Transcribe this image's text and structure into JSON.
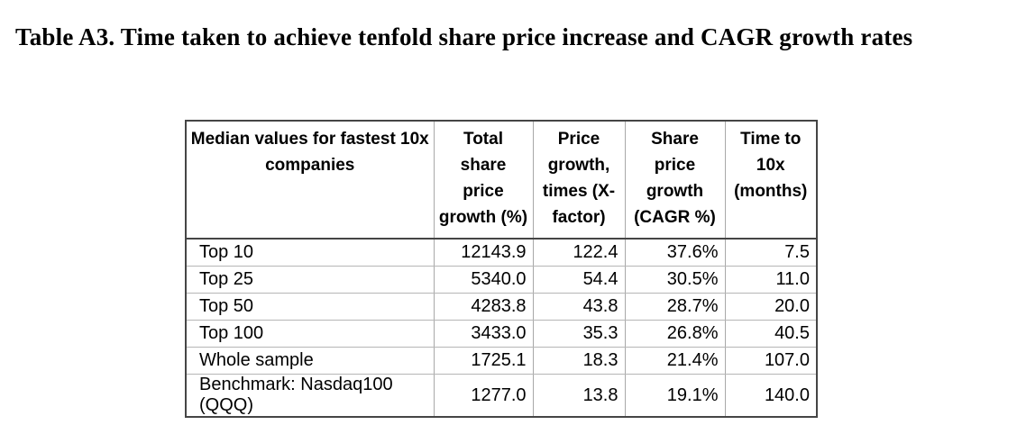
{
  "page": {
    "title": "Table A3. Time taken to achieve tenfold share price increase and CAGR growth rates"
  },
  "table": {
    "headers": [
      "Median values for fastest 10x\ncompanies",
      "Total\nshare\nprice\ngrowth (%)",
      "Price\ngrowth,\ntimes (X-\nfactor)",
      "Share\nprice\ngrowth\n(CAGR %)",
      "Time to\n10x\n(months)"
    ],
    "rows": [
      {
        "label": "Top 10",
        "values": [
          "12143.9",
          "122.4",
          "37.6%",
          "7.5"
        ]
      },
      {
        "label": "Top 25",
        "values": [
          "5340.0",
          "54.4",
          "30.5%",
          "11.0"
        ]
      },
      {
        "label": "Top 50",
        "values": [
          "4283.8",
          "43.8",
          "28.7%",
          "20.0"
        ]
      },
      {
        "label": "Top 100",
        "values": [
          "3433.0",
          "35.3",
          "26.8%",
          "40.5"
        ]
      },
      {
        "label": "Whole sample",
        "values": [
          "1725.1",
          "18.3",
          "21.4%",
          "107.0"
        ]
      },
      {
        "label": "Benchmark: Nasdaq100 (QQQ)",
        "values": [
          "1277.0",
          "13.8",
          "19.1%",
          "140.0"
        ]
      }
    ]
  },
  "colors": {
    "text": "#000000",
    "border_dark": "#454545",
    "border_light": "#a8a8a8"
  },
  "chart_data": {
    "type": "table",
    "title": "Table A3. Time taken to achieve tenfold share price increase and CAGR growth rates",
    "columns": [
      "Median values for fastest 10x companies",
      "Total share price growth (%)",
      "Price growth, times (X-factor)",
      "Share price growth (CAGR %)",
      "Time to 10x (months)"
    ],
    "rows": [
      [
        "Top 10",
        12143.9,
        122.4,
        "37.6%",
        7.5
      ],
      [
        "Top 25",
        5340.0,
        54.4,
        "30.5%",
        11.0
      ],
      [
        "Top 50",
        4283.8,
        43.8,
        "28.7%",
        20.0
      ],
      [
        "Top 100",
        3433.0,
        35.3,
        "26.8%",
        40.5
      ],
      [
        "Whole sample",
        1725.1,
        18.3,
        "21.4%",
        107.0
      ],
      [
        "Benchmark: Nasdaq100 (QQQ)",
        1277.0,
        13.8,
        "19.1%",
        140.0
      ]
    ]
  }
}
